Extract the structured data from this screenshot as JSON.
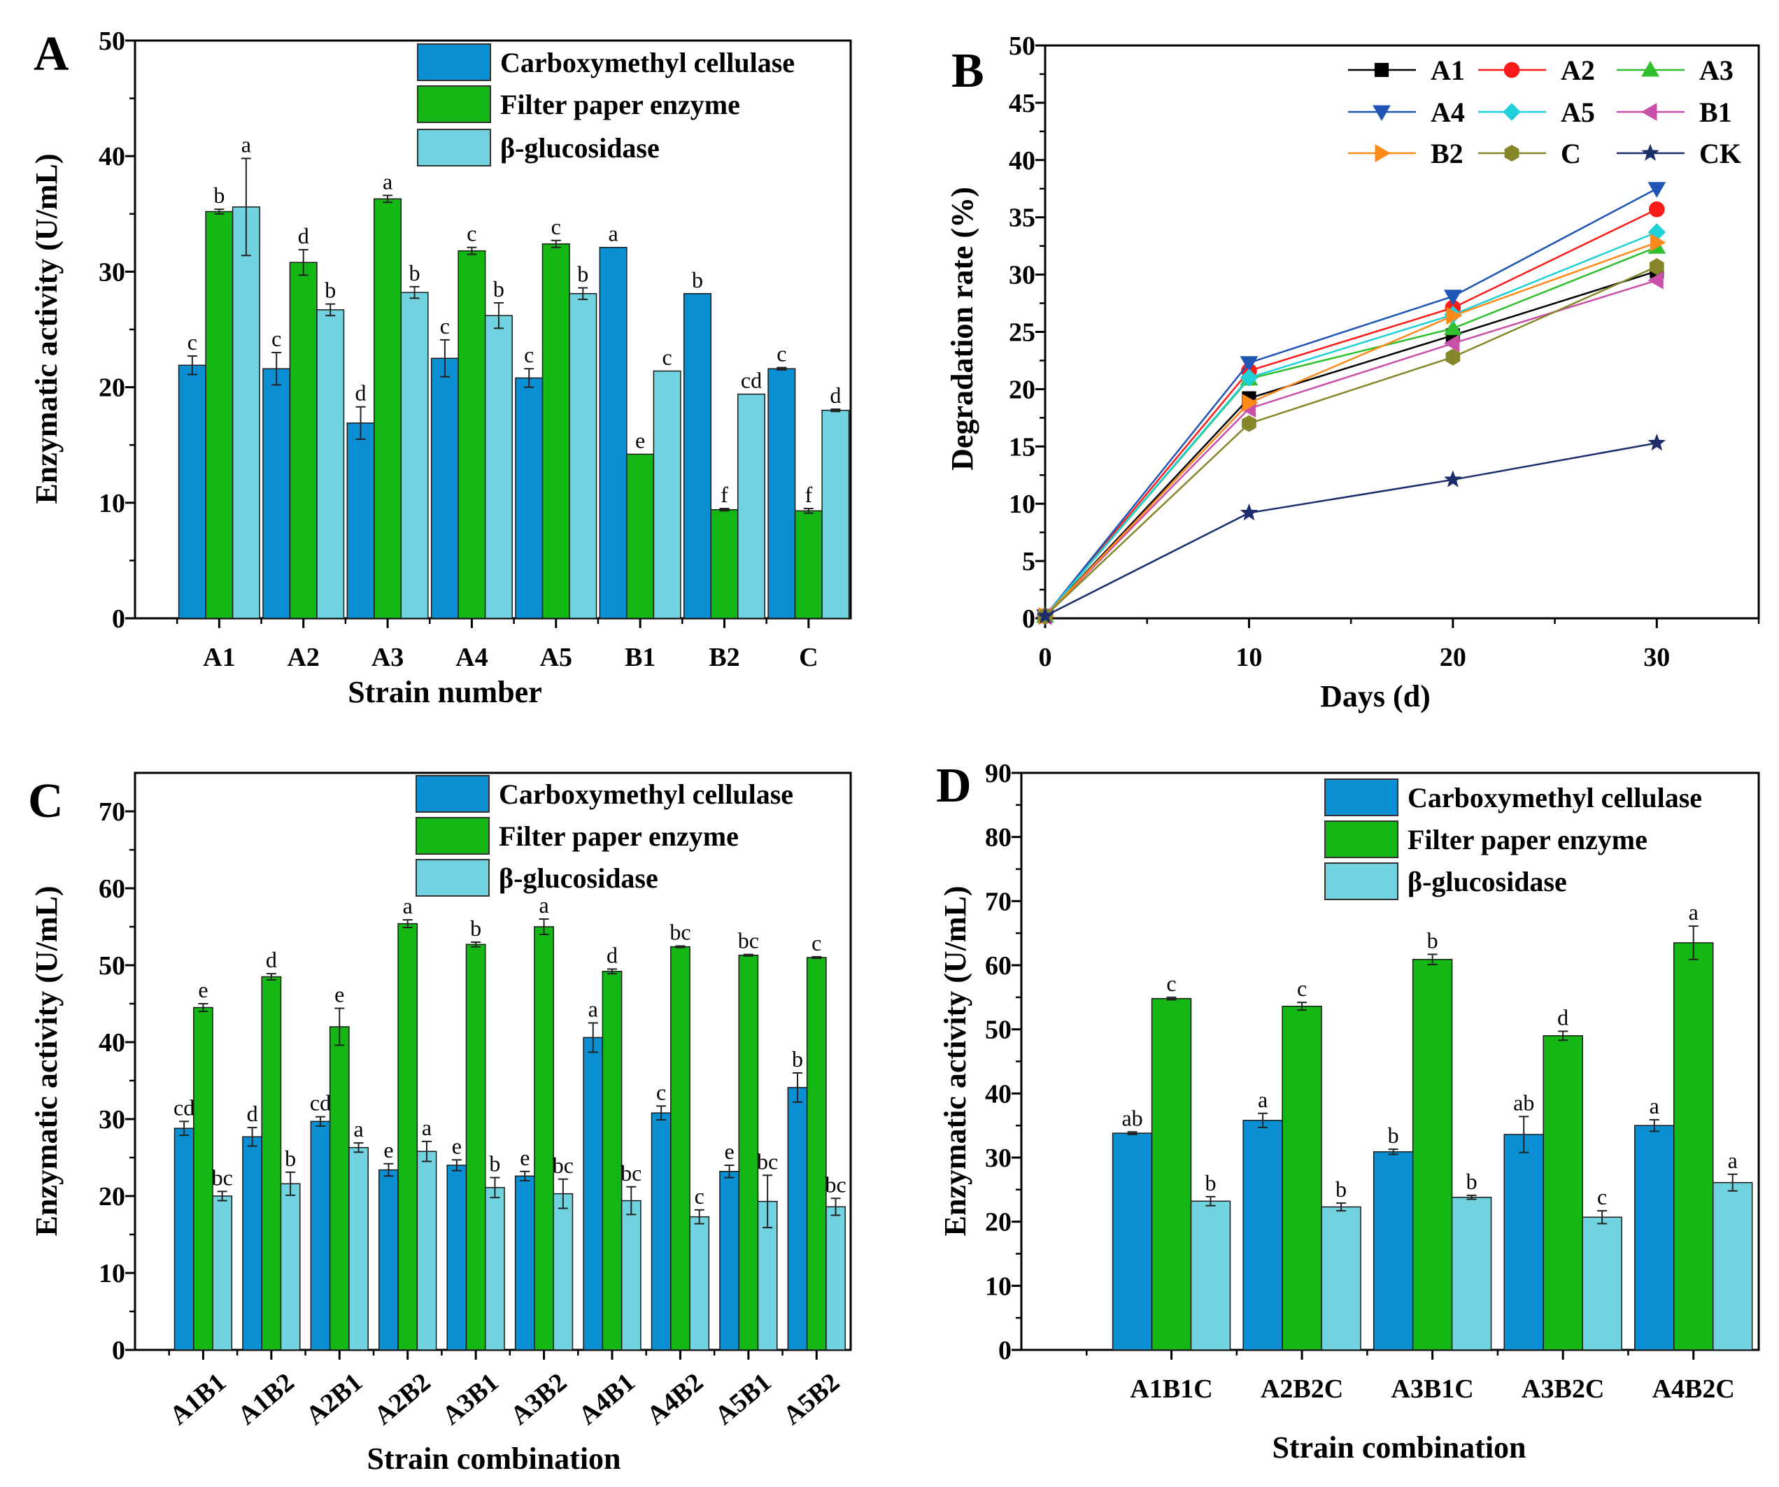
{
  "chart_data": [
    {
      "panel": "A",
      "type": "bar",
      "xlabel": "Strain number",
      "ylabel": "Enzymatic activity (U/mL)",
      "ylim": [
        0,
        50
      ],
      "yticks": [
        0,
        10,
        20,
        30,
        40,
        50
      ],
      "legend": "top-right",
      "categories": [
        "A1",
        "A2",
        "A3",
        "A4",
        "A5",
        "B1",
        "B2",
        "C"
      ],
      "series": [
        {
          "name": "Carboxymethyl cellulase",
          "color": "#0a8fd2",
          "values": [
            21.9,
            21.6,
            16.9,
            22.5,
            20.8,
            32.1,
            28.1,
            21.6
          ],
          "errors": [
            0.8,
            1.4,
            1.4,
            1.6,
            0.8,
            0,
            0,
            0.1
          ],
          "letters": [
            "c",
            "c",
            "d",
            "c",
            "c",
            "a",
            "b",
            "c"
          ]
        },
        {
          "name": "Filter paper enzyme",
          "color": "#14b814",
          "values": [
            35.2,
            30.8,
            36.3,
            31.8,
            32.4,
            14.2,
            9.4,
            9.3
          ],
          "errors": [
            0.2,
            1.1,
            0.3,
            0.3,
            0.3,
            0,
            0.1,
            0.2
          ],
          "letters": [
            "b",
            "d",
            "a",
            "c",
            "c",
            "e",
            "f",
            "f"
          ]
        },
        {
          "name": "β-glucosidase",
          "color": "#72d3e0",
          "values": [
            35.6,
            26.7,
            28.2,
            26.2,
            28.1,
            21.4,
            19.4,
            18.0
          ],
          "errors": [
            4.2,
            0.5,
            0.5,
            1.1,
            0.5,
            0,
            0,
            0.1
          ],
          "letters": [
            "a",
            "b",
            "b",
            "b",
            "b",
            "c",
            "cd",
            "d"
          ]
        }
      ]
    },
    {
      "panel": "B",
      "type": "line",
      "xlabel": "Days (d)",
      "ylabel": "Degradation rate (%)",
      "xlim": [
        0,
        35
      ],
      "ylim": [
        0,
        50
      ],
      "xticks": [
        0,
        10,
        20,
        30
      ],
      "yticks": [
        0,
        5,
        10,
        15,
        20,
        25,
        30,
        35,
        40,
        45,
        50
      ],
      "legend": "top-right",
      "x": [
        0,
        10,
        20,
        30
      ],
      "series": [
        {
          "name": "A1",
          "color": "#000000",
          "marker": "square",
          "values": [
            0.2,
            19.2,
            24.7,
            30.3
          ]
        },
        {
          "name": "A2",
          "color": "#ff1a1a",
          "marker": "circle",
          "values": [
            0.2,
            21.6,
            27.1,
            35.7
          ]
        },
        {
          "name": "A3",
          "color": "#2fbf2f",
          "marker": "triangle-up",
          "values": [
            0.2,
            20.9,
            25.3,
            32.4
          ]
        },
        {
          "name": "A4",
          "color": "#1f56b5",
          "marker": "triangle-down",
          "values": [
            0.2,
            22.3,
            28.1,
            37.5
          ]
        },
        {
          "name": "A5",
          "color": "#1fd0d8",
          "marker": "diamond",
          "values": [
            0.2,
            21.0,
            26.5,
            33.7
          ]
        },
        {
          "name": "B1",
          "color": "#c94fa8",
          "marker": "triangle-left",
          "values": [
            0.2,
            18.3,
            24.0,
            29.5
          ]
        },
        {
          "name": "B2",
          "color": "#ff8a1a",
          "marker": "triangle-right",
          "values": [
            0.2,
            18.8,
            26.4,
            32.8
          ]
        },
        {
          "name": "C",
          "color": "#86862a",
          "marker": "hexagon",
          "values": [
            0.2,
            17.0,
            22.8,
            30.7
          ]
        },
        {
          "name": "CK",
          "color": "#1c2d6b",
          "marker": "star",
          "values": [
            0.2,
            9.2,
            12.1,
            15.3
          ]
        }
      ]
    },
    {
      "panel": "C",
      "type": "bar",
      "xlabel": "Strain combination",
      "ylabel": "Enzymatic activity (U/mL)",
      "ylim": [
        0,
        75
      ],
      "yticks": [
        0,
        10,
        20,
        30,
        40,
        50,
        60,
        70
      ],
      "legend": "top-right",
      "categories": [
        "A1B1",
        "A1B2",
        "A2B1",
        "A2B2",
        "A3B1",
        "A3B2",
        "A4B1",
        "A4B2",
        "A5B1",
        "A5B2"
      ],
      "series": [
        {
          "name": "Carboxymethyl cellulase",
          "color": "#0a8fd2",
          "values": [
            28.8,
            27.7,
            29.7,
            23.4,
            24.0,
            22.6,
            40.6,
            30.8,
            23.2,
            34.1
          ],
          "errors": [
            0.9,
            1.2,
            0.6,
            0.8,
            0.7,
            0.6,
            1.9,
            0.9,
            0.8,
            1.9
          ],
          "letters": [
            "cd",
            "d",
            "cd",
            "e",
            "e",
            "e",
            "a",
            "c",
            "e",
            "b"
          ]
        },
        {
          "name": "Filter paper enzyme",
          "color": "#14b814",
          "values": [
            44.5,
            48.5,
            42.0,
            55.4,
            52.7,
            55.0,
            49.2,
            52.4,
            51.3,
            51.0
          ],
          "errors": [
            0.5,
            0.4,
            2.4,
            0.5,
            0.3,
            1.0,
            0.3,
            0.1,
            0.1,
            0.1
          ],
          "letters": [
            "e",
            "d",
            "e",
            "a",
            "b",
            "a",
            "d",
            "bc",
            "bc",
            "c"
          ]
        },
        {
          "name": "β-glucosidase",
          "color": "#72d3e0",
          "values": [
            20.0,
            21.6,
            26.3,
            25.8,
            21.1,
            20.3,
            19.4,
            17.3,
            19.3,
            18.6
          ],
          "errors": [
            0.6,
            1.5,
            0.6,
            1.3,
            1.3,
            1.9,
            1.8,
            0.9,
            3.4,
            1.1
          ],
          "letters": [
            "bc",
            "b",
            "a",
            "a",
            "b",
            "bc",
            "bc",
            "c",
            "bc",
            "bc"
          ]
        }
      ]
    },
    {
      "panel": "D",
      "type": "bar",
      "xlabel": "Strain combination",
      "ylabel": "Enzymatic activity (U/mL)",
      "ylim": [
        0,
        90
      ],
      "yticks": [
        0,
        10,
        20,
        30,
        40,
        50,
        60,
        70,
        80,
        90
      ],
      "legend": "top-right",
      "categories": [
        "A1B1C",
        "A2B2C",
        "A3B1C",
        "A3B2C",
        "A4B2C"
      ],
      "series": [
        {
          "name": "Carboxymethyl cellulase",
          "color": "#0a8fd2",
          "values": [
            33.8,
            35.8,
            30.9,
            33.6,
            35.0
          ],
          "errors": [
            0.2,
            1.1,
            0.4,
            2.8,
            0.9
          ],
          "letters": [
            "ab",
            "a",
            "b",
            "ab",
            "a"
          ]
        },
        {
          "name": "Filter paper enzyme",
          "color": "#14b814",
          "values": [
            54.8,
            53.6,
            60.9,
            49.0,
            63.5
          ],
          "errors": [
            0.2,
            0.6,
            0.8,
            0.7,
            2.6
          ],
          "letters": [
            "c",
            "c",
            "b",
            "d",
            "a"
          ]
        },
        {
          "name": "β-glucosidase",
          "color": "#72d3e0",
          "values": [
            23.2,
            22.3,
            23.8,
            20.7,
            26.1
          ],
          "errors": [
            0.7,
            0.6,
            0.3,
            1.0,
            1.3
          ],
          "letters": [
            "b",
            "b",
            "b",
            "c",
            "a"
          ]
        }
      ]
    }
  ]
}
